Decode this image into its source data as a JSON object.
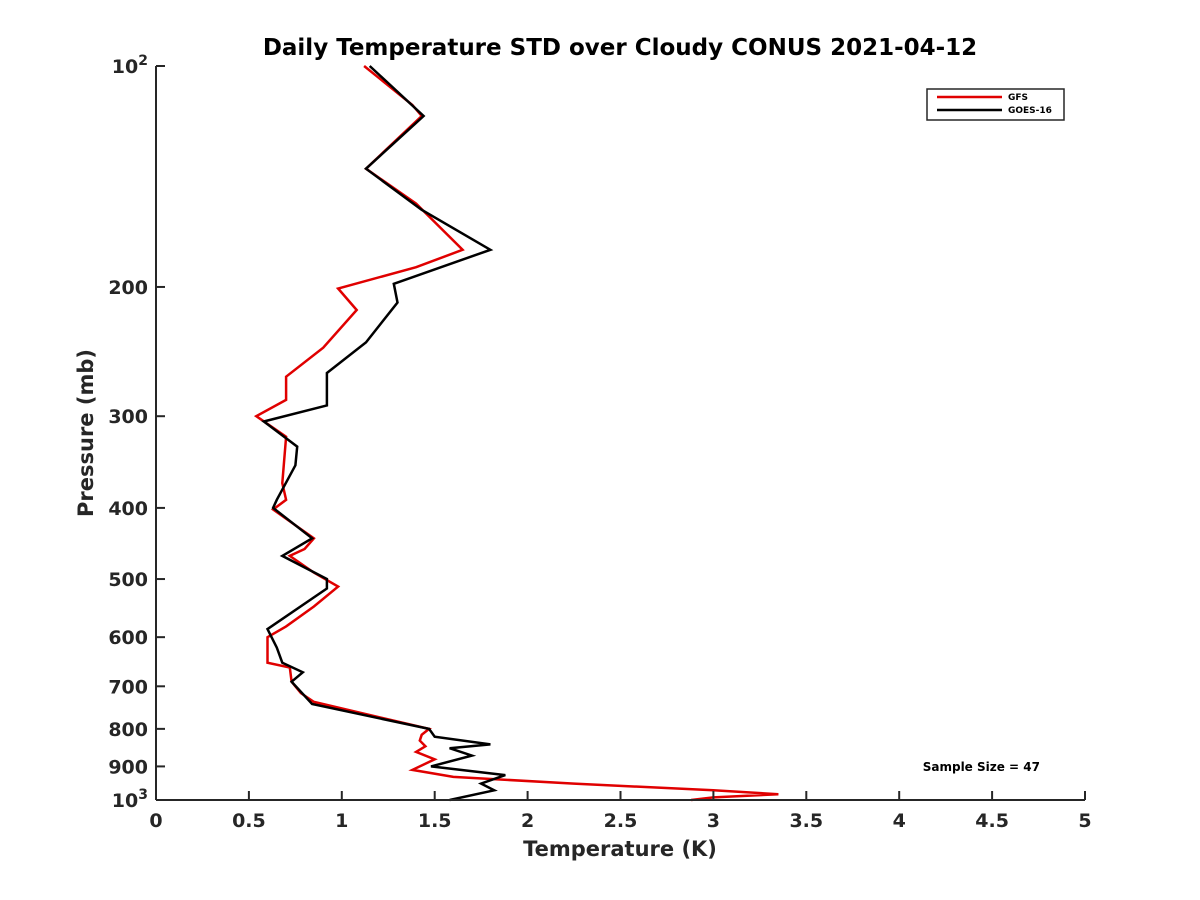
{
  "chart_data": {
    "type": "line",
    "title": "Daily Temperature STD over Cloudy CONUS 2021-04-12",
    "xlabel": "Temperature (K)",
    "ylabel": "Pressure (mb)",
    "xlim": [
      0,
      5
    ],
    "ylim": [
      100,
      1000
    ],
    "y_scale": "log",
    "y_reversed": true,
    "x_ticks": [
      0,
      0.5,
      1,
      1.5,
      2,
      2.5,
      3,
      3.5,
      4,
      4.5,
      5
    ],
    "x_tick_labels": [
      "0",
      "0.5",
      "1",
      "1.5",
      "2",
      "2.5",
      "3",
      "3.5",
      "4",
      "4.5",
      "5"
    ],
    "y_ticks": [
      100,
      200,
      300,
      400,
      500,
      600,
      700,
      800,
      900,
      1000
    ],
    "y_tick_labels": [
      {
        "base": "10",
        "exp": "2"
      },
      {
        "base": "200",
        "exp": ""
      },
      {
        "base": "300",
        "exp": ""
      },
      {
        "base": "400",
        "exp": ""
      },
      {
        "base": "500",
        "exp": ""
      },
      {
        "base": "600",
        "exp": ""
      },
      {
        "base": "700",
        "exp": ""
      },
      {
        "base": "800",
        "exp": ""
      },
      {
        "base": "900",
        "exp": ""
      },
      {
        "base": "10",
        "exp": "3"
      }
    ],
    "grid": false,
    "legend_position": "top-right",
    "annotation": "Sample Size = 47",
    "series": [
      {
        "name": "GFS",
        "color": "#e00000",
        "points": [
          [
            1.12,
            100
          ],
          [
            1.38,
            113
          ],
          [
            1.43,
            117
          ],
          [
            1.13,
            138
          ],
          [
            1.4,
            154
          ],
          [
            1.65,
            178
          ],
          [
            1.4,
            188
          ],
          [
            0.98,
            201
          ],
          [
            1.08,
            215
          ],
          [
            0.9,
            242
          ],
          [
            0.7,
            265
          ],
          [
            0.7,
            285
          ],
          [
            0.54,
            300
          ],
          [
            0.7,
            320
          ],
          [
            0.68,
            370
          ],
          [
            0.7,
            390
          ],
          [
            0.63,
            402
          ],
          [
            0.85,
            440
          ],
          [
            0.8,
            455
          ],
          [
            0.72,
            465
          ],
          [
            0.85,
            490
          ],
          [
            0.98,
            512
          ],
          [
            0.85,
            545
          ],
          [
            0.7,
            580
          ],
          [
            0.6,
            600
          ],
          [
            0.6,
            650
          ],
          [
            0.72,
            660
          ],
          [
            0.73,
            690
          ],
          [
            0.78,
            715
          ],
          [
            0.85,
            735
          ],
          [
            1.47,
            800
          ],
          [
            1.43,
            815
          ],
          [
            1.42,
            830
          ],
          [
            1.45,
            845
          ],
          [
            1.4,
            860
          ],
          [
            1.5,
            880
          ],
          [
            1.38,
            910
          ],
          [
            1.6,
            930
          ],
          [
            2.25,
            950
          ],
          [
            3.0,
            970
          ],
          [
            3.35,
            982
          ],
          [
            3.0,
            992
          ],
          [
            2.88,
            1000
          ]
        ]
      },
      {
        "name": "GOES-16",
        "color": "#000000",
        "points": [
          [
            1.15,
            100
          ],
          [
            1.44,
            117
          ],
          [
            1.13,
            138
          ],
          [
            1.43,
            157
          ],
          [
            1.8,
            178
          ],
          [
            1.28,
            198
          ],
          [
            1.3,
            210
          ],
          [
            1.13,
            238
          ],
          [
            0.92,
            262
          ],
          [
            0.92,
            290
          ],
          [
            0.58,
            305
          ],
          [
            0.76,
            330
          ],
          [
            0.75,
            350
          ],
          [
            0.65,
            390
          ],
          [
            0.63,
            400
          ],
          [
            0.84,
            440
          ],
          [
            0.68,
            465
          ],
          [
            0.92,
            500
          ],
          [
            0.92,
            515
          ],
          [
            0.6,
            585
          ],
          [
            0.65,
            620
          ],
          [
            0.68,
            650
          ],
          [
            0.79,
            670
          ],
          [
            0.73,
            690
          ],
          [
            0.84,
            740
          ],
          [
            1.47,
            800
          ],
          [
            1.5,
            820
          ],
          [
            1.8,
            840
          ],
          [
            1.58,
            850
          ],
          [
            1.7,
            870
          ],
          [
            1.48,
            900
          ],
          [
            1.88,
            925
          ],
          [
            1.75,
            950
          ],
          [
            1.82,
            970
          ],
          [
            1.58,
            1000
          ]
        ]
      }
    ]
  }
}
